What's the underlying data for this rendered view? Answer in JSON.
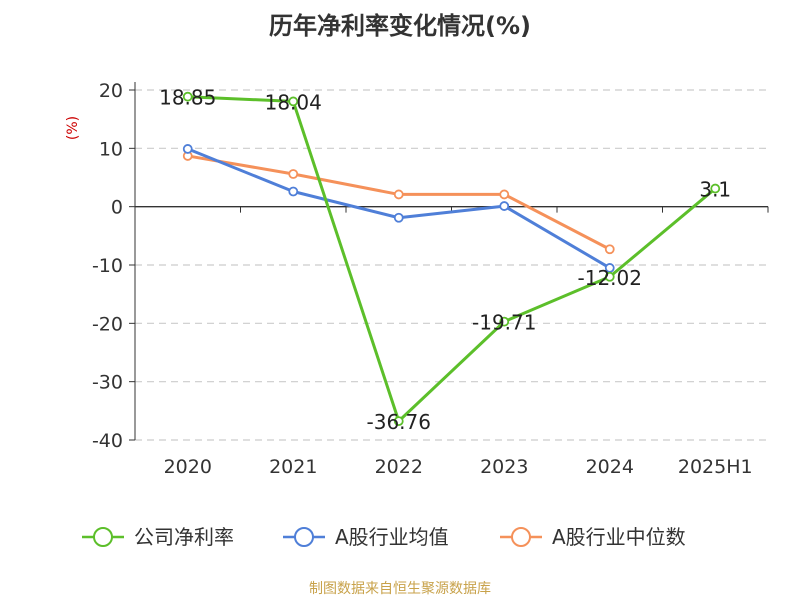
{
  "chart_data": {
    "type": "line",
    "title": "历年净利率变化情况(%)",
    "ylabel": "(%)",
    "xlabel": "",
    "categories": [
      "2020",
      "2021",
      "2022",
      "2023",
      "2024",
      "2025H1"
    ],
    "ylim": [
      -40,
      20
    ],
    "yticks": [
      20,
      10,
      0,
      -10,
      -20,
      -30,
      -40
    ],
    "grid": true,
    "legend_position": "bottom",
    "series": [
      {
        "name": "公司净利率",
        "color": "#5cbf2a",
        "values": [
          18.85,
          18.04,
          -36.76,
          -19.71,
          -12.02,
          3.1
        ],
        "labels": [
          "18.85",
          "18.04",
          "-36.76",
          "-19.71",
          "-12.02",
          "3.1"
        ]
      },
      {
        "name": "A股行业均值",
        "color": "#4f7fd8",
        "values": [
          9.9,
          2.6,
          -1.9,
          0.1,
          -10.5,
          null
        ]
      },
      {
        "name": "A股行业中位数",
        "color": "#f5915a",
        "values": [
          8.7,
          5.6,
          2.1,
          2.1,
          -7.3,
          null
        ]
      }
    ]
  },
  "footer": {
    "source": "制图数据来自恒生聚源数据库"
  }
}
